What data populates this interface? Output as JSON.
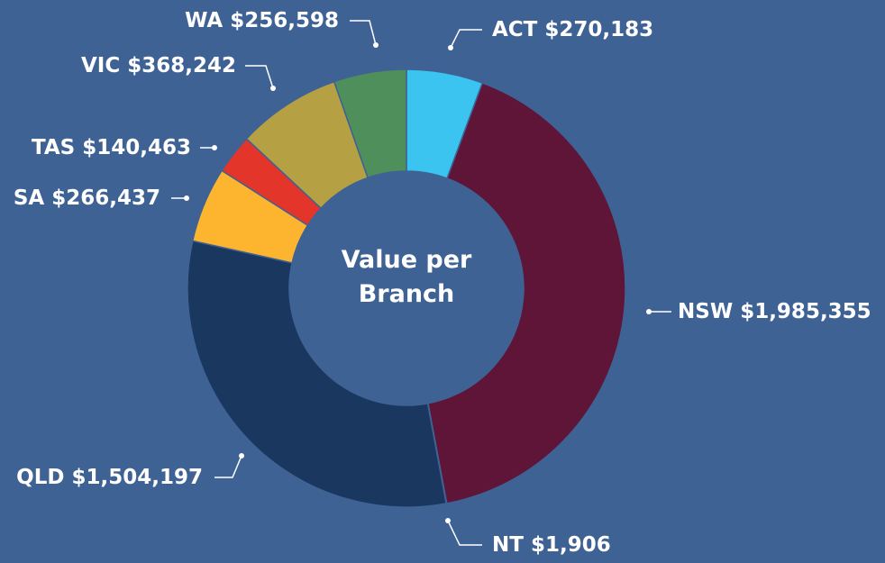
{
  "chart_data": {
    "type": "donut",
    "title": "Value per Branch",
    "categories": [
      "ACT",
      "NSW",
      "NT",
      "QLD",
      "SA",
      "TAS",
      "VIC",
      "WA"
    ],
    "values": [
      270183,
      1985355,
      1906,
      1504197,
      266437,
      140463,
      368242,
      256598
    ],
    "value_labels": [
      "$270,183",
      "$1,985,355",
      "$1,906",
      "$1,504,197",
      "$266,437",
      "$140,463",
      "$368,242",
      "$256,598"
    ],
    "colors": [
      "#3bc4f0",
      "#5e1537",
      "#f5c518",
      "#1a3760",
      "#fdb52f",
      "#e4352b",
      "#b5a043",
      "#4e8f5c"
    ]
  }
}
